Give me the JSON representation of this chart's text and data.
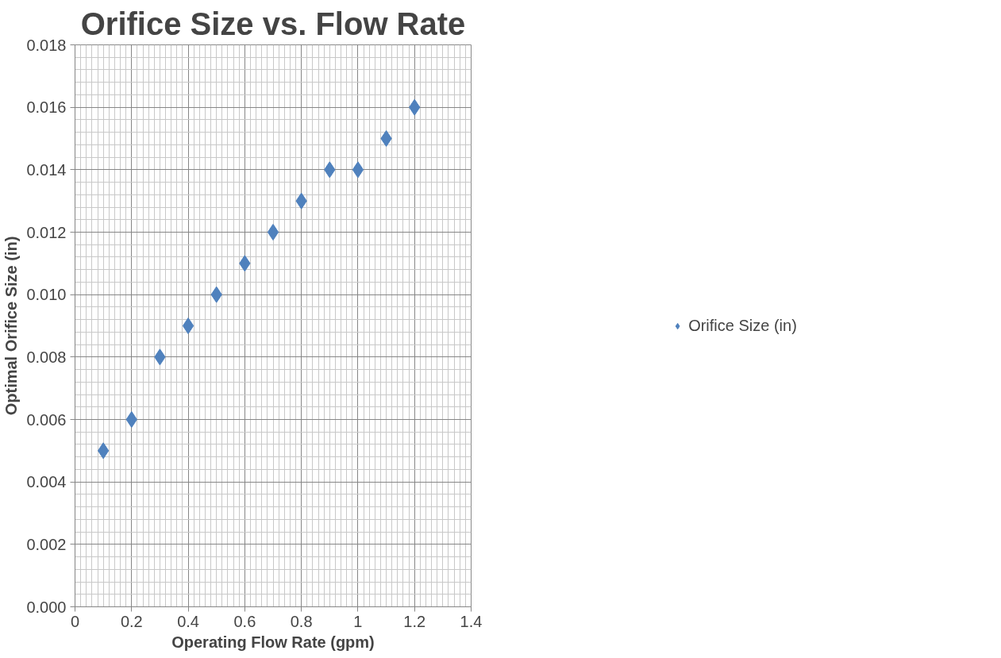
{
  "chart_data": {
    "type": "scatter",
    "title": "Orifice Size vs. Flow Rate",
    "xlabel": "Operating Flow Rate (gpm)",
    "ylabel": "Optimal Orifice Size (in)",
    "series": [
      {
        "name": "Orifice Size (in)",
        "color": "#4f81bd",
        "x": [
          0.1,
          0.2,
          0.3,
          0.4,
          0.5,
          0.6,
          0.7,
          0.8,
          0.9,
          1.0,
          1.1,
          1.2
        ],
        "values": [
          0.005,
          0.006,
          0.008,
          0.009,
          0.01,
          0.011,
          0.012,
          0.013,
          0.014,
          0.014,
          0.015,
          0.016
        ]
      }
    ],
    "xlim": [
      0,
      1.4
    ],
    "xticks": [
      0,
      0.2,
      0.4,
      0.6,
      0.8,
      1,
      1.2,
      1.4
    ],
    "ylim": [
      0,
      0.018
    ],
    "yticks": [
      {
        "value": 0,
        "label": "0.000"
      },
      {
        "value": 0.002,
        "label": "0.002"
      },
      {
        "value": 0.004,
        "label": "0.004"
      },
      {
        "value": 0.006,
        "label": "0.006"
      },
      {
        "value": 0.008,
        "label": "0.008"
      },
      {
        "value": 0.01,
        "label": "0.010"
      },
      {
        "value": 0.012,
        "label": "0.012"
      },
      {
        "value": 0.014,
        "label": "0.014"
      },
      {
        "value": 0.016,
        "label": "0.016"
      },
      {
        "value": 0.018,
        "label": "0.018"
      }
    ],
    "grid": true,
    "legend": "right",
    "marker": "diamond"
  }
}
